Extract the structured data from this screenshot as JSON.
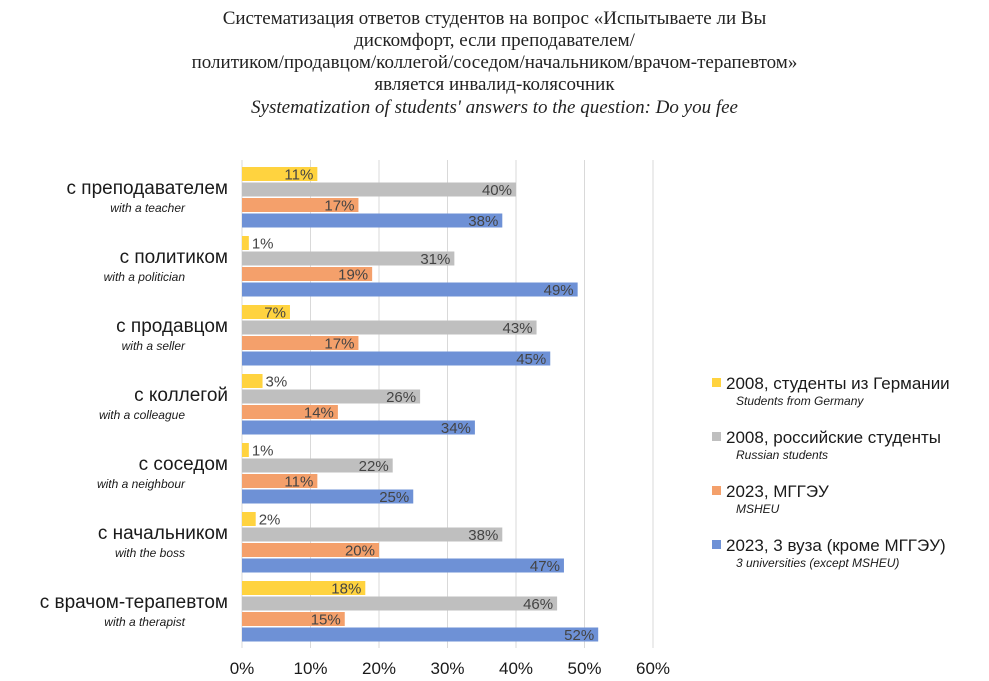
{
  "title": {
    "lines": [
      "Систематизация ответов студентов на вопрос «Испытываете ли Вы",
      "дискомфорт, если преподавателем/",
      "политиком/продавцом/коллегой/соседом/начальником/врачом-терапевтом»",
      "является инвалид-колясочник"
    ],
    "english": "Systematization of students' answers to the question: Do you fee"
  },
  "chart_data": {
    "type": "bar",
    "orientation": "horizontal",
    "categories": [
      {
        "ru": "с преподавателем",
        "en": "with a teacher"
      },
      {
        "ru": "с политиком",
        "en": "with a politician"
      },
      {
        "ru": "с продавцом",
        "en": "with a seller"
      },
      {
        "ru": "с коллегой",
        "en": "with a colleague"
      },
      {
        "ru": "с соседом",
        "en": "with a neighbour"
      },
      {
        "ru": "с начальником",
        "en": "with the boss"
      },
      {
        "ru": "с врачом-терапевтом",
        "en": "with a therapist"
      }
    ],
    "series": [
      {
        "name": "2008, студенты из Германии",
        "name_en": "Students from Germany",
        "color": "#FFD33F",
        "values": [
          11,
          1,
          7,
          3,
          1,
          2,
          18
        ]
      },
      {
        "name": "2008, российские студенты",
        "name_en": "Russian students",
        "color": "#BFBFBF",
        "values": [
          40,
          31,
          43,
          26,
          22,
          38,
          46
        ]
      },
      {
        "name": "2023, МГГЭУ",
        "name_en": "MSHEU",
        "color": "#F4A06B",
        "values": [
          17,
          19,
          17,
          14,
          11,
          20,
          15
        ]
      },
      {
        "name": "2023, 3 вуза (кроме МГГЭУ)",
        "name_en": "3 universities (except MSHEU)",
        "color": "#6E91D6",
        "values": [
          38,
          49,
          45,
          34,
          25,
          47,
          52
        ]
      }
    ],
    "value_suffix": "%",
    "xlim": [
      0,
      60
    ],
    "xticks": [
      "0%",
      "10%",
      "20%",
      "30%",
      "40%",
      "50%",
      "60%"
    ],
    "grid": true,
    "legend_position": "right"
  }
}
